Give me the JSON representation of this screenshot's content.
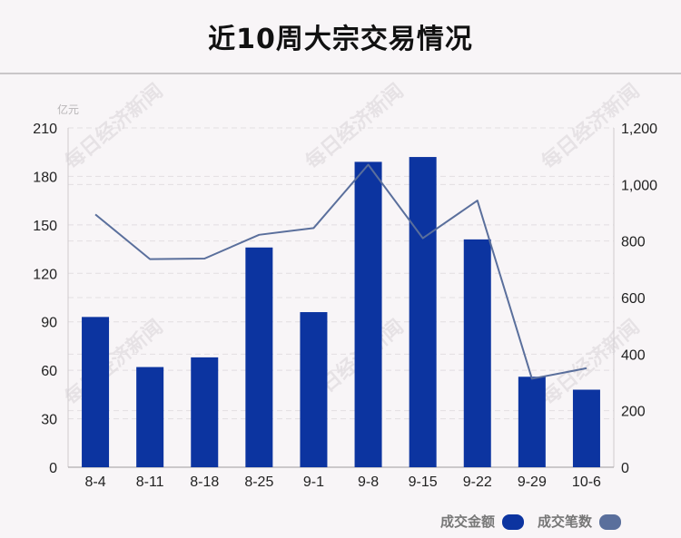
{
  "title": "近10周大宗交易情况",
  "watermark": "每日经济新闻",
  "chart_data": {
    "type": "bar",
    "categories": [
      "8-4",
      "8-11",
      "8-18",
      "8-25",
      "9-1",
      "9-8",
      "9-15",
      "9-22",
      "9-29",
      "10-6"
    ],
    "series": [
      {
        "name": "成交金额",
        "type": "bar",
        "axis": "left",
        "color": "#0c34a0",
        "values": [
          93,
          62,
          68,
          136,
          96,
          189,
          192,
          141,
          56,
          48
        ]
      },
      {
        "name": "成交笔数",
        "type": "line",
        "axis": "right",
        "color": "#5a6f9c",
        "values": [
          894,
          736,
          738,
          822,
          846,
          1070,
          810,
          943,
          313,
          350
        ]
      }
    ],
    "y_left": {
      "unit": "亿元",
      "ylim": [
        0,
        210
      ],
      "ticks": [
        "0",
        "30",
        "60",
        "90",
        "120",
        "150",
        "180",
        "210"
      ]
    },
    "y_right": {
      "ylim": [
        0,
        1200
      ],
      "ticks": [
        "0",
        "200",
        "400",
        "600",
        "800",
        "1,000",
        "1,200"
      ]
    },
    "legend_position": "bottom-right",
    "grid": true
  }
}
